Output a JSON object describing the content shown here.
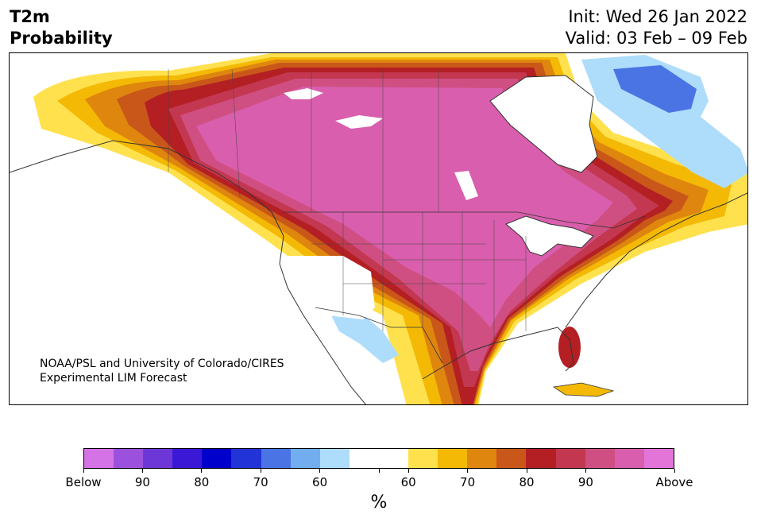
{
  "header": {
    "variable": "T2m",
    "subtitle": "Probability",
    "init": "Init: Wed 26 Jan 2022",
    "valid": "Valid: 03 Feb – 09 Feb"
  },
  "map": {
    "credit_line1": "NOAA/PSL and University of Colorado/CIRES",
    "credit_line2": "Experimental LIM Forecast"
  },
  "colorbar": {
    "unit": "%",
    "colors": [
      "#d473e6",
      "#9b51de",
      "#6d37d8",
      "#3a18d6",
      "#0000cc",
      "#2233d8",
      "#4a74e3",
      "#72aeef",
      "#aedcfb",
      "#ffffff",
      "#ffffff",
      "#ffe14e",
      "#f3b905",
      "#df860e",
      "#c95719",
      "#b41f24",
      "#c33850",
      "#d04f83",
      "#d95ead",
      "#e374d8"
    ],
    "labels": [
      "Below",
      "90",
      "80",
      "70",
      "60",
      "60",
      "70",
      "80",
      "90",
      "Above"
    ]
  }
}
